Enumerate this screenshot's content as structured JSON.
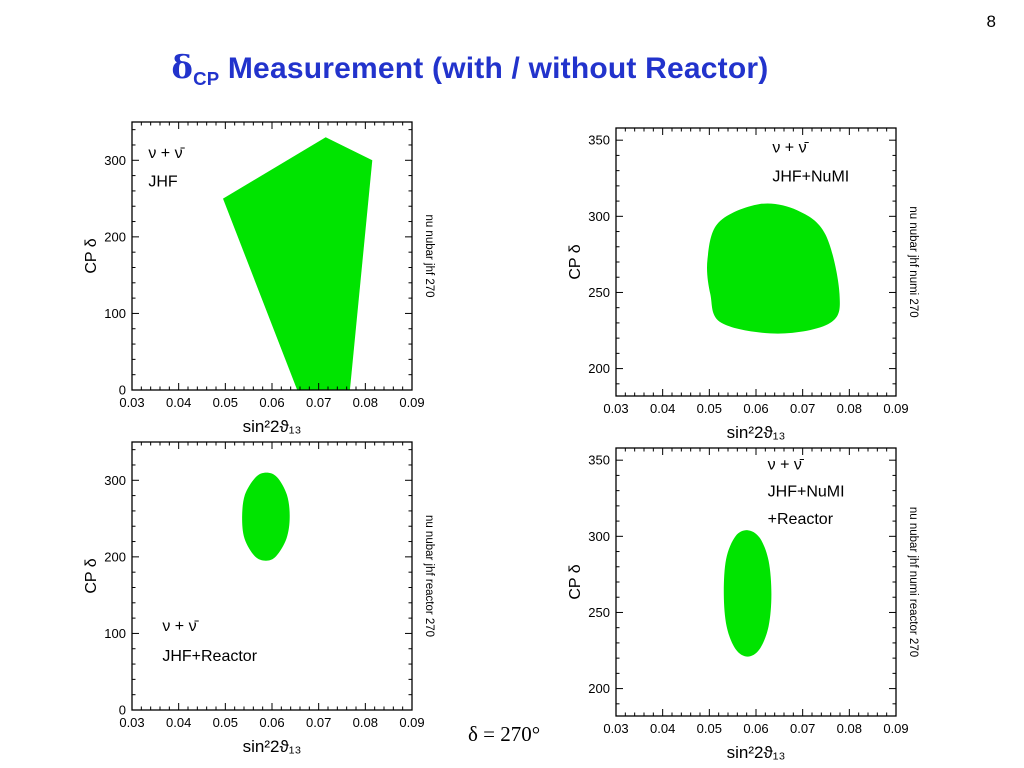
{
  "page_number": "8",
  "title": {
    "delta": "δ",
    "subscript": "CP",
    "rest": " Measurement (with / without Reactor)"
  },
  "footer": {
    "delta_label": "δ = 270°"
  },
  "colors": {
    "region_green": "#00e400",
    "title_blue": "#2233cc",
    "axis_black": "#000000"
  },
  "chart_data": [
    {
      "type": "contour-region",
      "name": "jhf",
      "annotations": [
        {
          "text": "ν + ν̄",
          "x": 0.0335,
          "y": 303
        },
        {
          "text": "JHF",
          "x": 0.0335,
          "y": 266
        }
      ],
      "side_label": "nu nubar jhf 270",
      "xlabel": "sin²2ϑ₁₃",
      "ylabel": "CP δ",
      "xlim": [
        0.03,
        0.09
      ],
      "ylim": [
        0,
        350
      ],
      "xticks": [
        0.03,
        0.04,
        0.05,
        0.06,
        0.07,
        0.08,
        0.09
      ],
      "xtick_labels": [
        "0.03",
        "0.04",
        "0.05",
        "0.06",
        "0.07",
        "0.08",
        "0.09"
      ],
      "yticks": [
        0,
        100,
        200,
        300
      ],
      "ytick_labels": [
        "0",
        "100",
        "200",
        "300"
      ],
      "x_minor_step": 0.002,
      "y_minor_step": 20,
      "smooth": false,
      "region": [
        [
          0.0495,
          250
        ],
        [
          0.0715,
          330
        ],
        [
          0.0815,
          300
        ],
        [
          0.0767,
          0
        ],
        [
          0.0654,
          0
        ]
      ]
    },
    {
      "type": "contour-region",
      "name": "jhf-numi",
      "annotations": [
        {
          "text": "ν + ν̄",
          "x": 0.0635,
          "y": 342
        },
        {
          "text": "JHF+NuMI",
          "x": 0.0635,
          "y": 323
        }
      ],
      "side_label": "nu nubar jhf numi 270",
      "xlabel": "sin²2ϑ₁₃",
      "ylabel": "CP δ",
      "xlim": [
        0.03,
        0.09
      ],
      "ylim": [
        182,
        358
      ],
      "xticks": [
        0.03,
        0.04,
        0.05,
        0.06,
        0.07,
        0.08,
        0.09
      ],
      "xtick_labels": [
        "0.03",
        "0.04",
        "0.05",
        "0.06",
        "0.07",
        "0.08",
        "0.09"
      ],
      "yticks": [
        200,
        250,
        300,
        350
      ],
      "ytick_labels": [
        "200",
        "250",
        "300",
        "350"
      ],
      "x_minor_step": 0.002,
      "y_minor_step": 10,
      "smooth": true,
      "region": [
        [
          0.0496,
          272
        ],
        [
          0.052,
          296
        ],
        [
          0.0607,
          308
        ],
        [
          0.0688,
          304
        ],
        [
          0.0749,
          288
        ],
        [
          0.0779,
          249
        ],
        [
          0.0759,
          230
        ],
        [
          0.0647,
          223
        ],
        [
          0.0526,
          230
        ],
        [
          0.0502,
          249
        ]
      ]
    },
    {
      "type": "contour-region",
      "name": "jhf-reactor",
      "annotations": [
        {
          "text": "ν + ν̄",
          "x": 0.0365,
          "y": 103
        },
        {
          "text": "JHF+Reactor",
          "x": 0.0365,
          "y": 64
        }
      ],
      "side_label": "nu nubar jhf reactor 270",
      "xlabel": "sin²2ϑ₁₃",
      "ylabel": "CP δ",
      "xlim": [
        0.03,
        0.09
      ],
      "ylim": [
        0,
        350
      ],
      "xticks": [
        0.03,
        0.04,
        0.05,
        0.06,
        0.07,
        0.08,
        0.09
      ],
      "xtick_labels": [
        "0.03",
        "0.04",
        "0.05",
        "0.06",
        "0.07",
        "0.08",
        "0.09"
      ],
      "yticks": [
        0,
        100,
        200,
        300
      ],
      "ytick_labels": [
        "0",
        "100",
        "200",
        "300"
      ],
      "x_minor_step": 0.002,
      "y_minor_step": 20,
      "smooth": true,
      "region": [
        [
          0.0536,
          252
        ],
        [
          0.0542,
          281
        ],
        [
          0.0565,
          304
        ],
        [
          0.0588,
          310
        ],
        [
          0.0611,
          304
        ],
        [
          0.0632,
          281
        ],
        [
          0.0638,
          252
        ],
        [
          0.0631,
          224
        ],
        [
          0.0609,
          201
        ],
        [
          0.0587,
          195
        ],
        [
          0.0563,
          201
        ],
        [
          0.0541,
          224
        ]
      ]
    },
    {
      "type": "contour-region",
      "name": "jhf-numi-reactor",
      "annotations": [
        {
          "text": "ν + ν̄",
          "x": 0.0625,
          "y": 344
        },
        {
          "text": "JHF+NuMI",
          "x": 0.0625,
          "y": 326
        },
        {
          "text": "+Reactor",
          "x": 0.0625,
          "y": 308
        }
      ],
      "side_label": "nu nubar jhf numi reactor 270",
      "xlabel": "sin²2ϑ₁₃",
      "ylabel": "CP δ",
      "xlim": [
        0.03,
        0.09
      ],
      "ylim": [
        182,
        358
      ],
      "xticks": [
        0.03,
        0.04,
        0.05,
        0.06,
        0.07,
        0.08,
        0.09
      ],
      "xtick_labels": [
        "0.03",
        "0.04",
        "0.05",
        "0.06",
        "0.07",
        "0.08",
        "0.09"
      ],
      "yticks": [
        200,
        250,
        300,
        350
      ],
      "ytick_labels": [
        "200",
        "250",
        "300",
        "350"
      ],
      "x_minor_step": 0.002,
      "y_minor_step": 10,
      "smooth": true,
      "region": [
        [
          0.0531,
          262
        ],
        [
          0.0536,
          285
        ],
        [
          0.0556,
          300
        ],
        [
          0.0582,
          304
        ],
        [
          0.0608,
          299
        ],
        [
          0.0627,
          284
        ],
        [
          0.0633,
          262
        ],
        [
          0.0627,
          241
        ],
        [
          0.0608,
          226
        ],
        [
          0.0582,
          221
        ],
        [
          0.0556,
          226
        ],
        [
          0.0537,
          241
        ]
      ]
    }
  ]
}
